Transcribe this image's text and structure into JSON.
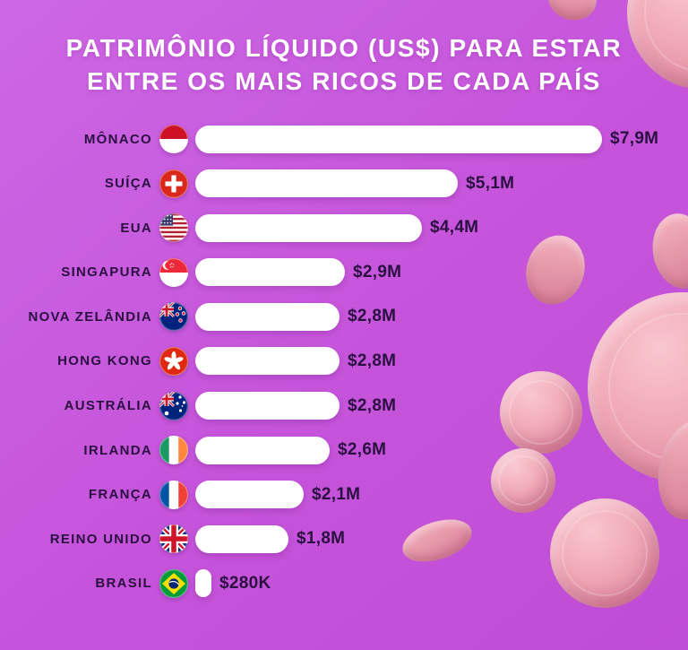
{
  "title": {
    "line1": "PATRIMÔNIO LÍQUIDO (US$) PARA ESTAR",
    "line2": "ENTRE OS MAIS RICOS DE CADA PAÍS"
  },
  "chart_data": {
    "type": "bar",
    "orientation": "horizontal",
    "title": "Patrimônio líquido (US$) para estar entre os mais ricos de cada país",
    "unit": "US$",
    "value_scale": "millions of US$",
    "xlim": [
      0,
      8.2
    ],
    "grid": false,
    "legend": null,
    "categories": [
      "MÔNACO",
      "SUÍÇA",
      "EUA",
      "SINGAPURA",
      "NOVA ZELÂNDIA",
      "HONG KONG",
      "AUSTRÁLIA",
      "IRLANDA",
      "FRANÇA",
      "REINO UNIDO",
      "BRASIL"
    ],
    "values": [
      7.9,
      5.1,
      4.4,
      2.9,
      2.8,
      2.8,
      2.8,
      2.6,
      2.1,
      1.8,
      0.28
    ],
    "rows": [
      {
        "label": "MÔNACO",
        "flag": "monaco",
        "flag_icon": "flag-monaco-icon",
        "value_musd": 7.9,
        "value_label": "$7,9M"
      },
      {
        "label": "SUÍÇA",
        "flag": "switzerland",
        "flag_icon": "flag-switzerland-icon",
        "value_musd": 5.1,
        "value_label": "$5,1M"
      },
      {
        "label": "EUA",
        "flag": "usa",
        "flag_icon": "flag-usa-icon",
        "value_musd": 4.4,
        "value_label": "$4,4M"
      },
      {
        "label": "SINGAPURA",
        "flag": "singapore",
        "flag_icon": "flag-singapore-icon",
        "value_musd": 2.9,
        "value_label": "$2,9M"
      },
      {
        "label": "NOVA ZELÂNDIA",
        "flag": "new-zealand",
        "flag_icon": "flag-new-zealand-icon",
        "value_musd": 2.8,
        "value_label": "$2,8M"
      },
      {
        "label": "HONG KONG",
        "flag": "hong-kong",
        "flag_icon": "flag-hong-kong-icon",
        "value_musd": 2.8,
        "value_label": "$2,8M"
      },
      {
        "label": "AUSTRÁLIA",
        "flag": "australia",
        "flag_icon": "flag-australia-icon",
        "value_musd": 2.8,
        "value_label": "$2,8M"
      },
      {
        "label": "IRLANDA",
        "flag": "ireland",
        "flag_icon": "flag-ireland-icon",
        "value_musd": 2.6,
        "value_label": "$2,6M"
      },
      {
        "label": "FRANÇA",
        "flag": "france",
        "flag_icon": "flag-france-icon",
        "value_musd": 2.1,
        "value_label": "$2,1M"
      },
      {
        "label": "REINO UNIDO",
        "flag": "uk",
        "flag_icon": "flag-uk-icon",
        "value_musd": 1.8,
        "value_label": "$1,8M"
      },
      {
        "label": "BRASIL",
        "flag": "brazil",
        "flag_icon": "flag-brazil-icon",
        "value_musd": 0.28,
        "value_label": "$280K"
      }
    ],
    "bar_color": "#ffffff"
  },
  "colors": {
    "background": "#c655db",
    "title_text": "#ffffff",
    "label_text": "#2a1040",
    "bar_fill": "#ffffff",
    "coin_pink": "#efa5b4"
  },
  "decorations": [
    "pink-3d-coins"
  ]
}
